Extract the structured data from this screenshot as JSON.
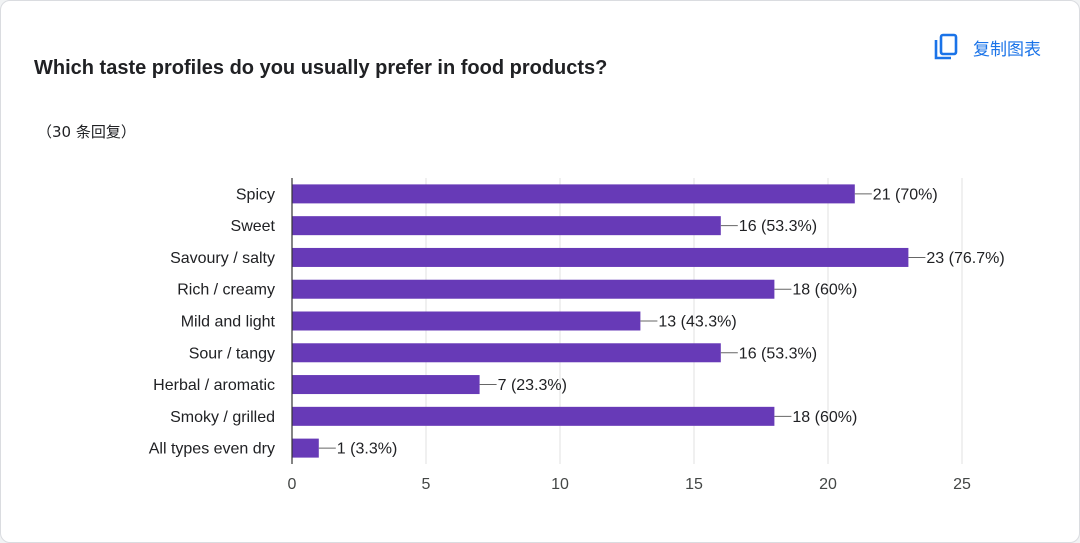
{
  "question": {
    "title": "Which taste profiles do you usually prefer in food products?",
    "response_count": "（30 条回复）"
  },
  "toolbar": {
    "copy_chart_label": "复制图表",
    "copy_icon": "copy-icon"
  },
  "colors": {
    "bar": "#673ab7",
    "grid": "#e0e0e0",
    "axis": "#333333",
    "accent": "#1a73e8"
  },
  "chart_data": {
    "type": "bar",
    "orientation": "horizontal",
    "title": "Which taste profiles do you usually prefer in food products?",
    "xlabel": "",
    "ylabel": "",
    "xlim": [
      0,
      25
    ],
    "ticks": [
      0,
      5,
      10,
      15,
      20,
      25
    ],
    "grid": true,
    "categories": [
      "Spicy",
      "Sweet",
      "Savoury / salty",
      "Rich / creamy",
      "Mild and light",
      "Sour / tangy",
      "Herbal / aromatic",
      "Smoky / grilled",
      "All types even dry"
    ],
    "values": [
      21,
      16,
      23,
      18,
      13,
      16,
      7,
      18,
      1
    ],
    "data_labels": [
      "21 (70%)",
      "16 (53.3%)",
      "23 (76.7%)",
      "18 (60%)",
      "13 (43.3%)",
      "16 (53.3%)",
      "7 (23.3%)",
      "18 (60%)",
      "1 (3.3%)"
    ]
  }
}
